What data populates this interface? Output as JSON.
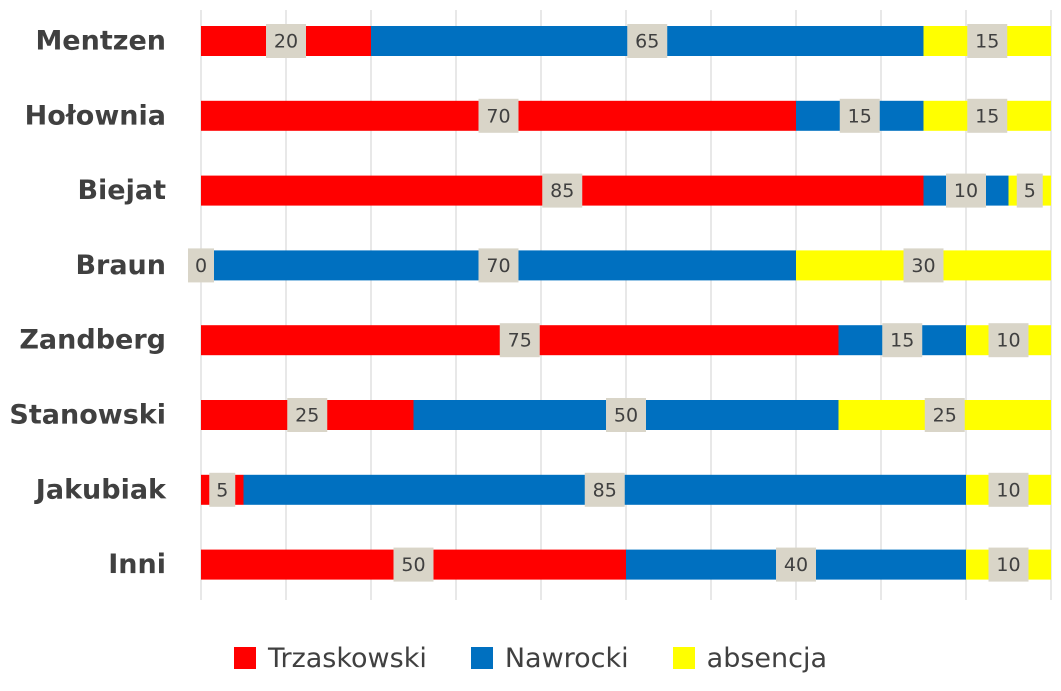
{
  "chart_data": {
    "type": "bar",
    "orientation": "horizontal",
    "stacked": true,
    "categories": [
      "Mentzen",
      "Hołownia",
      "Biejat",
      "Braun",
      "Zandberg",
      "Stanowski",
      "Jakubiak",
      "Inni"
    ],
    "series": [
      {
        "name": "Trzaskowski",
        "color": "#ff0000",
        "values": [
          20,
          70,
          85,
          0,
          75,
          25,
          5,
          50
        ]
      },
      {
        "name": "Nawrocki",
        "color": "#0070c0",
        "values": [
          65,
          15,
          10,
          70,
          15,
          50,
          85,
          40
        ]
      },
      {
        "name": "absencja",
        "color": "#ffff00",
        "values": [
          15,
          15,
          5,
          30,
          10,
          25,
          10,
          10
        ]
      }
    ],
    "xlim": [
      0,
      100
    ],
    "grid": "vertical",
    "data_labels": true,
    "data_label_background": "#d9d5c8",
    "legend_position": "bottom",
    "title": "",
    "xlabel": "",
    "ylabel": ""
  }
}
